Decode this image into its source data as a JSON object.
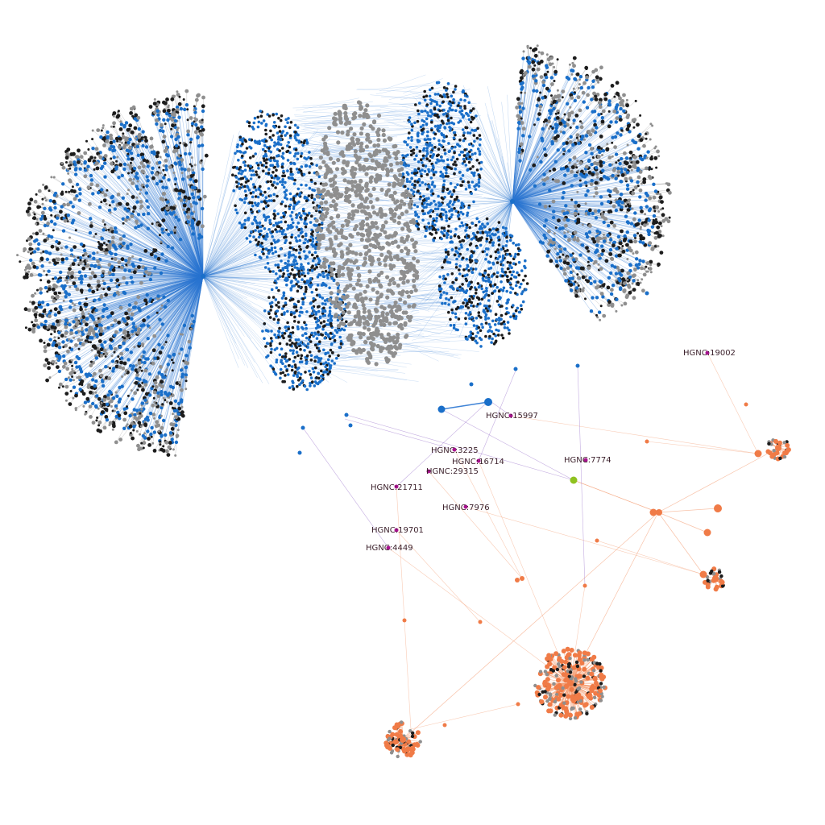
{
  "diagram": {
    "type": "network-graph",
    "colors": {
      "background": "#ffffff",
      "blue_node": "#1a6fc9",
      "blue_edge": "#2a76d2",
      "grey_node": "#8f8f8f",
      "black_node": "#1c1c1c",
      "orange_node": "#f07b47",
      "orange_edge": "#f39a6e",
      "green_node": "#8fc21f",
      "magenta_node": "#a8128f",
      "purple_edge": "#8a5bc4",
      "pink_edge": "#e07aa6"
    },
    "labeled_nodes": [
      {
        "label": "HGNC:19002"
      },
      {
        "label": "HGNC:15997"
      },
      {
        "label": "HGNC:3225"
      },
      {
        "label": "HGNC:16714"
      },
      {
        "label": "HGNC:7774"
      },
      {
        "label": "HGNC:29315"
      },
      {
        "label": "HGNC:21711"
      },
      {
        "label": "HGNC:7976"
      },
      {
        "label": "HGNC:19701"
      },
      {
        "label": "HGNC:4449"
      }
    ]
  }
}
